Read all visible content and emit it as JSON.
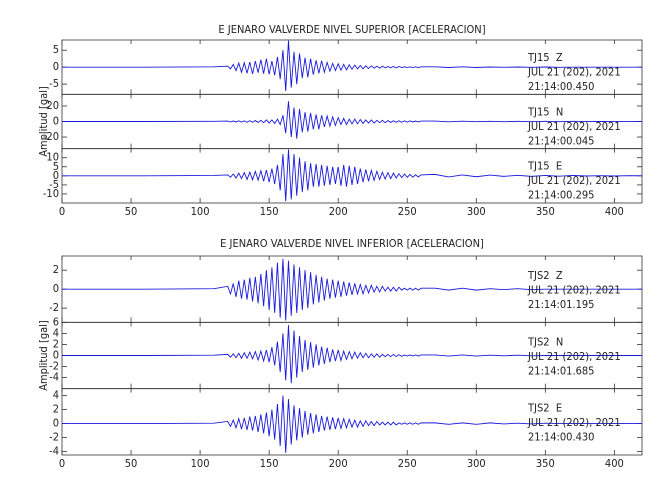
{
  "chart_data": [
    {
      "type": "line",
      "title": "E JENARO VALVERDE NIVEL SUPERIOR [ACELERACION]",
      "ylabel": "Amplitud [gal]",
      "color": "#1a1adc",
      "xlim": [
        0,
        420
      ],
      "xticks": [
        0,
        50,
        100,
        150,
        200,
        250,
        300,
        350,
        400
      ],
      "x": [
        0,
        60,
        110,
        120,
        122,
        124,
        126,
        128,
        130,
        132,
        134,
        136,
        138,
        140,
        142,
        144,
        146,
        148,
        150,
        152,
        154,
        156,
        158,
        160,
        162,
        164,
        166,
        168,
        170,
        172,
        174,
        176,
        178,
        180,
        182,
        184,
        186,
        188,
        190,
        192,
        194,
        196,
        198,
        200,
        202,
        204,
        206,
        208,
        210,
        212,
        214,
        216,
        218,
        220,
        222,
        224,
        226,
        228,
        230,
        232,
        234,
        236,
        238,
        240,
        242,
        244,
        246,
        248,
        250,
        252,
        254,
        256,
        258,
        260,
        270,
        280,
        290,
        300,
        310,
        320,
        330,
        340,
        350,
        360,
        370,
        380,
        390,
        400,
        410,
        420
      ],
      "panels": [
        {
          "station": "TJ15  Z",
          "date": "JUL 21 (202), 2021",
          "time": "21:14:00.450",
          "ylim": [
            -8,
            8
          ],
          "yticks": [
            -5,
            0,
            5
          ],
          "values": [
            0,
            0,
            0.1,
            0.3,
            -0.5,
            0.8,
            -1,
            1.2,
            -1.5,
            1.3,
            -1.8,
            1.5,
            -2,
            1.8,
            -1.6,
            2.2,
            -1.9,
            2.5,
            -2.1,
            1.8,
            -2.4,
            3,
            -3.5,
            5,
            -7,
            7.8,
            -6,
            4.5,
            -5,
            4,
            -3.2,
            2.8,
            -3,
            2.5,
            -2.2,
            2,
            -1.8,
            1.9,
            -1.5,
            1.4,
            -1.2,
            1.1,
            -1,
            1,
            -0.9,
            0.8,
            -0.8,
            0.7,
            -0.6,
            0.6,
            -0.5,
            0.5,
            -0.5,
            0.4,
            -0.4,
            0.4,
            -0.3,
            0.3,
            -0.3,
            0.3,
            -0.2,
            0.2,
            -0.2,
            0.2,
            -0.2,
            0.2,
            -0.1,
            0.1,
            -0.1,
            0.1,
            -0.1,
            0.1,
            -0.1,
            0.1,
            0.1,
            -0.1,
            0.1,
            -0.1,
            0.05,
            -0.05,
            0.05,
            -0.05,
            0.05,
            -0.05,
            0,
            0,
            0,
            0,
            0,
            0
          ]
        },
        {
          "station": "TJ15  N",
          "date": "JUL 21 (202), 2021",
          "time": "21:14:00.045",
          "ylim": [
            -35,
            35
          ],
          "yticks": [
            -20,
            0,
            20
          ],
          "values": [
            0,
            0,
            0.2,
            0.5,
            -0.5,
            0.6,
            -0.6,
            0.8,
            -0.8,
            0.8,
            -1,
            1,
            -1,
            1.2,
            -1.2,
            1.5,
            -1.5,
            2,
            -2,
            2,
            -2.5,
            3,
            -4,
            8,
            -15,
            26,
            -20,
            18,
            -22,
            16,
            -14,
            12,
            -13,
            11,
            -10,
            9,
            -10,
            8,
            -7,
            7,
            -6,
            6,
            -5,
            5,
            -4,
            4,
            -4,
            3,
            -3,
            3,
            -3,
            2.5,
            -2.5,
            2,
            -2,
            2,
            -2,
            1.5,
            -1.5,
            1.5,
            -1.5,
            1.2,
            -1.2,
            1,
            -1,
            1,
            -1,
            0.8,
            -0.8,
            0.8,
            -0.6,
            0.6,
            -0.5,
            0.5,
            0.5,
            -0.4,
            0.4,
            -0.3,
            0.3,
            -0.3,
            0.2,
            -0.2,
            0.2,
            -0.2,
            0.2,
            -0.1,
            0.1,
            -0.1,
            0.1,
            0
          ]
        },
        {
          "station": "TJ15  E",
          "date": "JUL 21 (202), 2021",
          "time": "21:14:00.295",
          "ylim": [
            -15,
            15
          ],
          "yticks": [
            -10,
            -5,
            0,
            5,
            10
          ],
          "values": [
            0,
            0,
            0.2,
            0.5,
            -0.8,
            1,
            -1.2,
            1.5,
            -1.5,
            1.8,
            -2,
            2,
            -2.2,
            2.5,
            -2.4,
            2.8,
            -3,
            3.2,
            -3.5,
            4,
            -4.5,
            6,
            -8,
            12,
            -14,
            14.5,
            -13,
            12,
            -11,
            10,
            -9,
            8,
            -8,
            7,
            -6,
            6.5,
            -6,
            6,
            -5.5,
            5.5,
            -5,
            5,
            -4.5,
            5,
            -5.5,
            6,
            -6,
            5.5,
            -5,
            5,
            -4.5,
            4,
            -3.5,
            3.5,
            -3,
            3,
            -2.5,
            2.5,
            -2,
            2,
            -1.8,
            1.8,
            -1.5,
            1.5,
            -1.2,
            1.2,
            -1,
            1,
            -0.8,
            0.8,
            -0.8,
            0.6,
            -0.6,
            0.5,
            0.8,
            -0.6,
            0.5,
            -0.5,
            0.4,
            -0.3,
            0.3,
            -0.3,
            0.2,
            -0.2,
            0.2,
            -0.1,
            0.1,
            -0.1,
            0.1,
            0
          ]
        }
      ]
    },
    {
      "type": "line",
      "title": "E JENARO VALVERDE NIVEL INFERIOR [ACELERACION]",
      "ylabel": "Amplitud [gal]",
      "color": "#1a1adc",
      "xlim": [
        0,
        420
      ],
      "xticks": [
        0,
        50,
        100,
        150,
        200,
        250,
        300,
        350,
        400
      ],
      "x": [
        0,
        60,
        110,
        120,
        122,
        124,
        126,
        128,
        130,
        132,
        134,
        136,
        138,
        140,
        142,
        144,
        146,
        148,
        150,
        152,
        154,
        156,
        158,
        160,
        162,
        164,
        166,
        168,
        170,
        172,
        174,
        176,
        178,
        180,
        182,
        184,
        186,
        188,
        190,
        192,
        194,
        196,
        198,
        200,
        202,
        204,
        206,
        208,
        210,
        212,
        214,
        216,
        218,
        220,
        222,
        224,
        226,
        228,
        230,
        232,
        234,
        236,
        238,
        240,
        242,
        244,
        246,
        248,
        250,
        252,
        254,
        256,
        258,
        260,
        270,
        280,
        290,
        300,
        310,
        320,
        330,
        340,
        350,
        360,
        370,
        380,
        390,
        400,
        410,
        420
      ],
      "panels": [
        {
          "station": "TJS2  Z",
          "date": "JUL 21 (202), 2021",
          "time": "21:14:01.195",
          "ylim": [
            -3.5,
            3.5
          ],
          "yticks": [
            -2,
            0,
            2
          ],
          "values": [
            0,
            0,
            0.05,
            0.3,
            -0.5,
            0.6,
            -0.8,
            0.9,
            -1,
            1,
            -1.1,
            1.2,
            -1.3,
            1.3,
            -1.5,
            1.6,
            -1.8,
            2,
            -2.2,
            2.3,
            -2.5,
            2.8,
            -3,
            3.2,
            -3.3,
            3,
            -2.8,
            2.6,
            -2.5,
            2.3,
            -2.2,
            2,
            -2,
            1.8,
            -1.6,
            1.5,
            -1.4,
            1.3,
            -1.2,
            1.1,
            -1,
            1,
            -0.9,
            0.9,
            -0.8,
            0.8,
            -0.7,
            0.7,
            -0.6,
            0.6,
            -0.5,
            0.5,
            -0.5,
            0.4,
            -0.4,
            0.4,
            -0.3,
            0.3,
            -0.3,
            0.3,
            -0.2,
            0.2,
            -0.2,
            0.2,
            -0.2,
            0.2,
            -0.1,
            0.1,
            -0.1,
            0.1,
            -0.1,
            0.1,
            -0.1,
            0.1,
            0.1,
            -0.1,
            0.1,
            -0.1,
            0.05,
            -0.05,
            0.05,
            -0.05,
            0,
            0,
            0,
            0,
            0,
            0,
            0,
            0
          ]
        },
        {
          "station": "TJS2  N",
          "date": "JUL 21 (202), 2021",
          "time": "21:14:01.685",
          "ylim": [
            -6,
            6
          ],
          "yticks": [
            -4,
            -2,
            0,
            2,
            4,
            6
          ],
          "values": [
            0,
            0,
            0.05,
            0.2,
            -0.3,
            0.3,
            -0.4,
            0.4,
            -0.5,
            0.5,
            -0.5,
            0.6,
            -0.6,
            0.7,
            -0.8,
            0.8,
            -1,
            1,
            -1.2,
            1.5,
            -1.8,
            2.5,
            -3,
            4,
            -4.5,
            5.5,
            -5,
            4.5,
            -4,
            3.5,
            -3,
            2.8,
            -2.6,
            2.4,
            -2.2,
            2,
            -1.8,
            1.6,
            -1.5,
            1.4,
            -1.2,
            1.1,
            -1,
            1,
            -0.9,
            0.8,
            -0.7,
            0.7,
            -0.6,
            0.6,
            -0.5,
            0.5,
            -0.4,
            0.4,
            -0.4,
            0.3,
            -0.3,
            0.3,
            -0.3,
            0.2,
            -0.2,
            0.2,
            -0.2,
            0.2,
            -0.2,
            0.15,
            -0.15,
            0.1,
            -0.1,
            0.1,
            -0.1,
            0.1,
            -0.1,
            0.1,
            0.1,
            -0.1,
            0.1,
            -0.1,
            0.05,
            -0.05,
            0.05,
            -0.05,
            0,
            0,
            0,
            0,
            0,
            0,
            0,
            0
          ]
        },
        {
          "station": "TJS2  E",
          "date": "JUL 21 (202), 2021",
          "time": "21:14:00.430",
          "ylim": [
            -4.5,
            5
          ],
          "yticks": [
            -4,
            -2,
            0,
            2,
            4
          ],
          "values": [
            0,
            0,
            0.05,
            0.3,
            -0.4,
            0.5,
            -0.6,
            0.7,
            -0.8,
            0.8,
            -0.9,
            1,
            -1,
            1.1,
            -1.2,
            1.3,
            -1.4,
            1.6,
            -1.8,
            2,
            -2.3,
            2.8,
            -3.2,
            4,
            -4.2,
            3.5,
            -3,
            2.6,
            -2.4,
            2.2,
            -2,
            1.8,
            -1.6,
            1.5,
            -1.4,
            1.3,
            -1.2,
            1.1,
            -1,
            1,
            -0.9,
            0.9,
            -0.8,
            0.8,
            -0.7,
            0.7,
            -0.6,
            0.6,
            -0.5,
            0.5,
            -0.5,
            0.4,
            -0.4,
            0.4,
            -0.3,
            0.3,
            -0.3,
            0.3,
            -0.2,
            0.2,
            -0.2,
            0.2,
            -0.2,
            0.2,
            -0.2,
            0.1,
            -0.1,
            0.1,
            -0.1,
            0.1,
            -0.1,
            0.1,
            -0.1,
            0.1,
            0.1,
            -0.1,
            0.1,
            -0.1,
            0.1,
            -0.05,
            0.05,
            -0.05,
            0.05,
            0,
            0,
            0,
            0,
            0,
            0,
            0
          ]
        }
      ]
    }
  ]
}
